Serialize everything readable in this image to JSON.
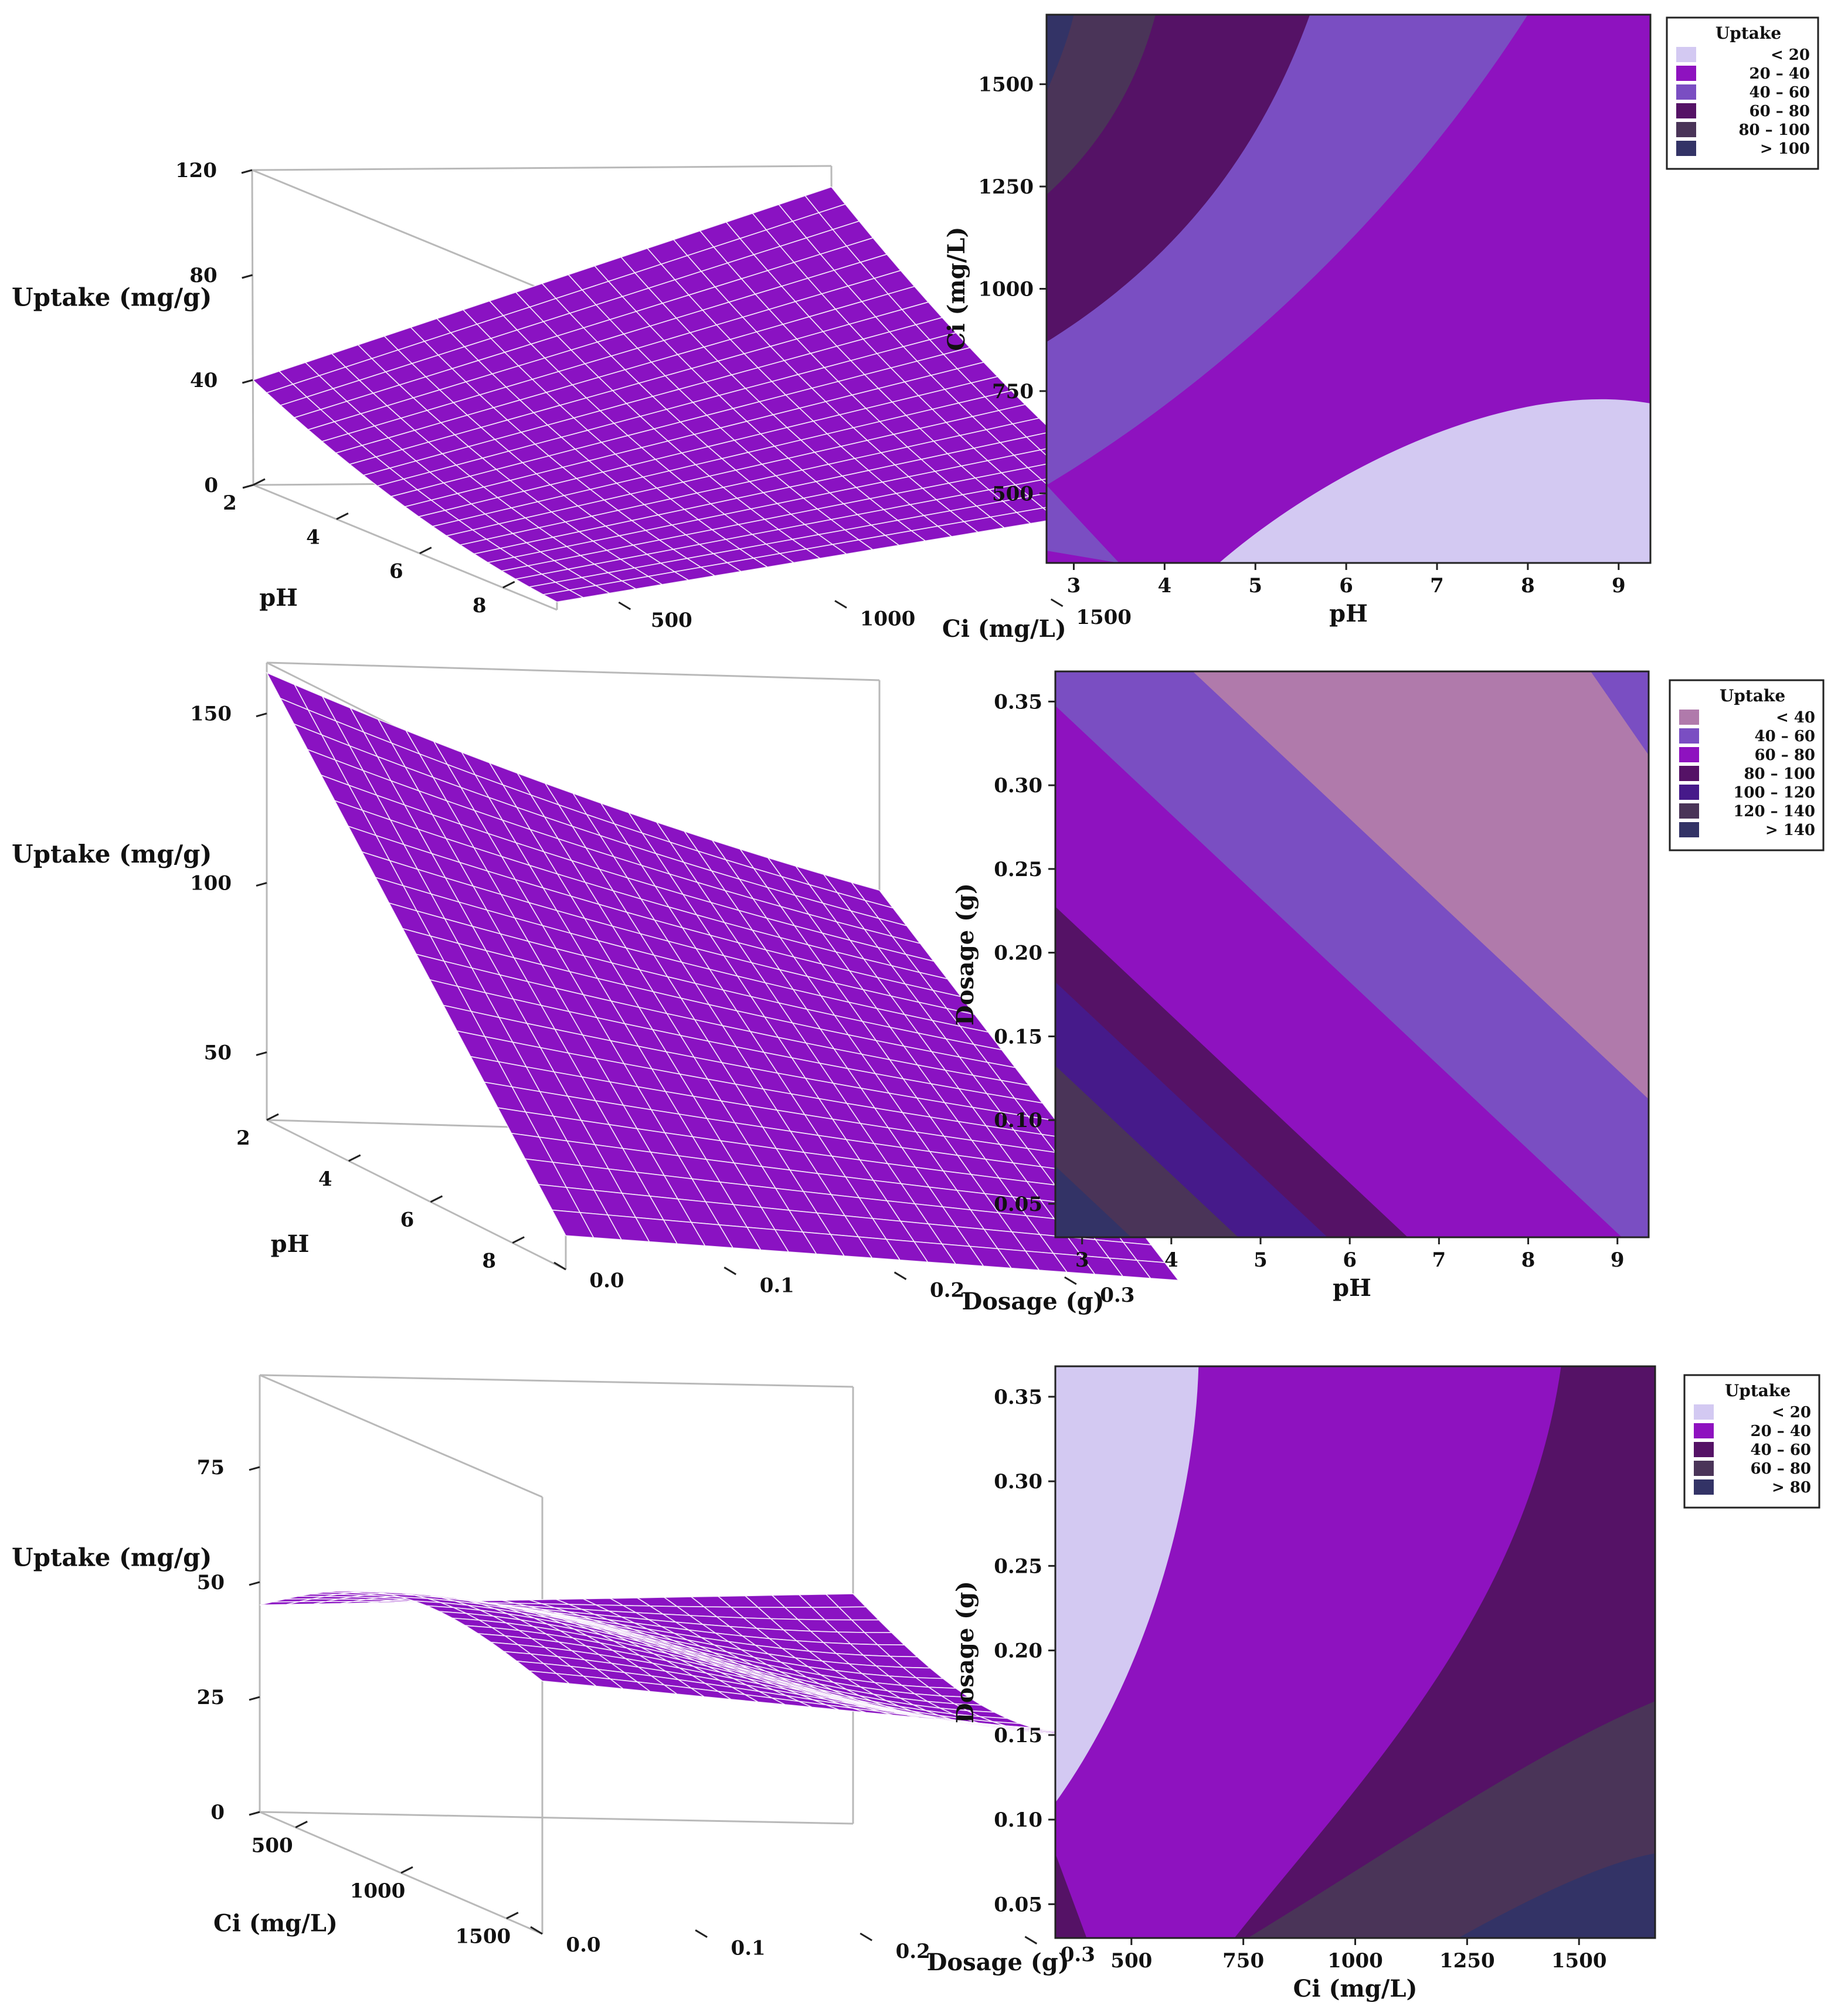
{
  "colors": {
    "surface": "#8a12c2",
    "mesh": "#ffffff",
    "box": "#b9b9b9"
  },
  "chart_data": [
    {
      "type": "surface",
      "xlabel": "pH",
      "ylabel": "Ci (mg/L)",
      "zlabel": "Uptake (mg/g)",
      "x_range": [
        2,
        9.3
      ],
      "y_range": [
        330,
        1670
      ],
      "z_range": [
        0,
        120
      ],
      "x_ticks": [
        "2",
        "4",
        "6",
        "8"
      ],
      "y_ticks": [
        "500",
        "1000",
        "1500"
      ],
      "z_ticks": [
        "0",
        "40",
        "80",
        "120"
      ],
      "corner_values": {
        "low_x_low_y": 40,
        "low_x_high_y": 112,
        "high_x_low_y": 3,
        "high_x_high_y": 38
      }
    },
    {
      "type": "contour",
      "xlabel": "pH",
      "ylabel": "Ci (mg/L)",
      "x_range": [
        2.7,
        9.35
      ],
      "y_range": [
        330,
        1670
      ],
      "x_ticks": [
        "3",
        "4",
        "5",
        "6",
        "7",
        "8",
        "9"
      ],
      "y_ticks": [
        "500",
        "750",
        "1000",
        "1250",
        "1500"
      ],
      "legend": {
        "title": "Uptake",
        "entries": [
          {
            "label": "<   20",
            "color": "#d3c9f2"
          },
          {
            "label": "20  –  40",
            "color": "#8e12bf"
          },
          {
            "label": "40  –  60",
            "color": "#7a4ec2"
          },
          {
            "label": "60  –  80",
            "color": "#551266"
          },
          {
            "label": "80  –  100",
            "color": "#4a3458"
          },
          {
            "label": ">  100",
            "color": "#333366"
          }
        ]
      }
    },
    {
      "type": "surface",
      "xlabel": "pH",
      "ylabel": "Dosage (g)",
      "zlabel": "Uptake (mg/g)",
      "x_range": [
        2,
        9.3
      ],
      "y_range": [
        0,
        0.36
      ],
      "z_range": [
        30,
        165
      ],
      "x_ticks": [
        "2",
        "4",
        "6",
        "8"
      ],
      "y_ticks": [
        "0.0",
        "0.1",
        "0.2",
        "0.3"
      ],
      "z_ticks": [
        "50",
        "100",
        "150"
      ],
      "corner_values": {
        "low_x_low_y": 148,
        "low_x_high_y": 103,
        "high_x_low_y": 40,
        "high_x_high_y": 38
      }
    },
    {
      "type": "contour",
      "xlabel": "pH",
      "ylabel": "Dosage (g)",
      "x_range": [
        2.7,
        9.35
      ],
      "y_range": [
        0.03,
        0.368
      ],
      "x_ticks": [
        "3",
        "4",
        "5",
        "6",
        "7",
        "8",
        "9"
      ],
      "y_ticks": [
        "0.05",
        "0.10",
        "0.15",
        "0.20",
        "0.25",
        "0.30",
        "0.35"
      ],
      "legend": {
        "title": "Uptake",
        "entries": [
          {
            "label": "<   40",
            "color": "#b07aab"
          },
          {
            "label": "40  –  60",
            "color": "#7a4ec2"
          },
          {
            "label": "60  –  80",
            "color": "#8e12bf"
          },
          {
            "label": "80  –  100",
            "color": "#551266"
          },
          {
            "label": "100  –  120",
            "color": "#461a8a"
          },
          {
            "label": "120  –  140",
            "color": "#4a3458"
          },
          {
            "label": ">  140",
            "color": "#333366"
          }
        ]
      }
    },
    {
      "type": "surface",
      "xlabel": "Ci (mg/L)",
      "ylabel": "Dosage (g)",
      "zlabel": "Uptake (mg/g)",
      "x_range": [
        330,
        1670
      ],
      "y_range": [
        0,
        0.36
      ],
      "z_range": [
        0,
        95
      ],
      "x_ticks": [
        "500",
        "1000",
        "1500"
      ],
      "y_ticks": [
        "0.0",
        "0.1",
        "0.2",
        "0.3"
      ],
      "z_ticks": [
        "0",
        "25",
        "50",
        "75"
      ],
      "corner_values": {
        "low_x_low_y": 45,
        "low_x_high_y": 50,
        "high_x_low_y": 55,
        "high_x_high_y": 45
      }
    },
    {
      "type": "contour",
      "xlabel": "Ci (mg/L)",
      "ylabel": "Dosage (g)",
      "x_range": [
        330,
        1670
      ],
      "y_range": [
        0.03,
        0.368
      ],
      "x_ticks": [
        "500",
        "750",
        "1000",
        "1250",
        "1500"
      ],
      "y_ticks": [
        "0.05",
        "0.10",
        "0.15",
        "0.20",
        "0.25",
        "0.30",
        "0.35"
      ],
      "legend": {
        "title": "Uptake",
        "entries": [
          {
            "label": "<   20",
            "color": "#d3c9f2"
          },
          {
            "label": "20  –  40",
            "color": "#8e12bf"
          },
          {
            "label": "40  –  60",
            "color": "#551266"
          },
          {
            "label": "60  –  80",
            "color": "#4a3458"
          },
          {
            "label": ">  80",
            "color": "#333366"
          }
        ]
      }
    }
  ]
}
